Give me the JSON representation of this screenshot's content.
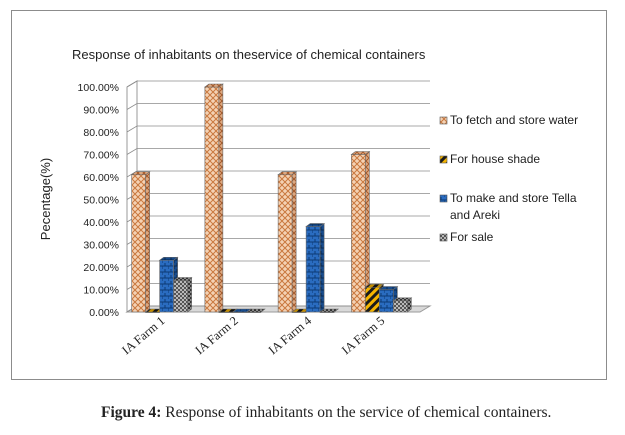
{
  "figure_caption": {
    "label": "Figure 4:",
    "text": "Response of inhabitants on the service of chemical containers."
  },
  "chart_data": {
    "type": "bar",
    "title": "Response of inhabitants on theservice of chemical containers",
    "xlabel": "",
    "ylabel": "Pecentage(%)",
    "ylim": [
      0,
      1.0
    ],
    "y_ticks": [
      "0.00%",
      "10.00%",
      "20.00%",
      "30.00%",
      "40.00%",
      "50.00%",
      "60.00%",
      "70.00%",
      "80.00%",
      "90.00%",
      "100.00%"
    ],
    "categories": [
      "IA Farm 1",
      "IA Farm 2",
      "IA Farm 4",
      "IA Farm 5"
    ],
    "series": [
      {
        "name": "To fetch and store water",
        "values": [
          0.61,
          1.0,
          0.61,
          0.7
        ],
        "color": "#f2c9a8",
        "pattern": "crosshatch"
      },
      {
        "name": "For house shade",
        "values": [
          0.0,
          0.0,
          0.0,
          0.11
        ],
        "color": "#f5b400",
        "pattern": "diagonal-stripes"
      },
      {
        "name": "To make and store Tella and Areki",
        "values": [
          0.23,
          0.0,
          0.38,
          0.1
        ],
        "color": "#1f5fa8",
        "pattern": "bricks"
      },
      {
        "name": "For sale",
        "values": [
          0.14,
          0.0,
          0.0,
          0.05
        ],
        "color": "#9a9a9a",
        "pattern": "checker"
      }
    ],
    "grid": true,
    "legend_position": "right",
    "style": "3d"
  }
}
